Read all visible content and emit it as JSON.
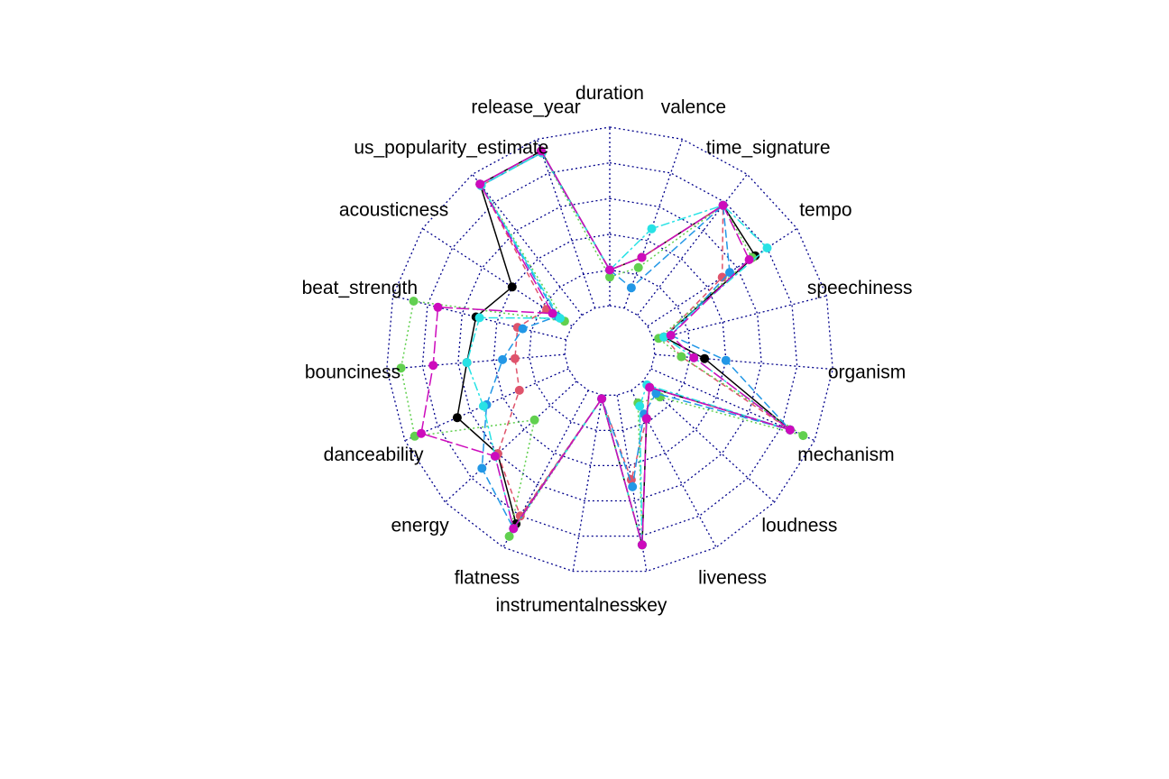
{
  "chart_data": {
    "type": "radar",
    "title": "",
    "axes": [
      "duration",
      "valence",
      "time_signature",
      "tempo",
      "speechiness",
      "organism",
      "mechanism",
      "loudness",
      "liveness",
      "key",
      "instrumentalness",
      "flatness",
      "energy",
      "danceability",
      "bounciness",
      "beat_strength",
      "acousticness",
      "us_popularity_estimate",
      "release_year"
    ],
    "range": [
      0,
      1
    ],
    "grid_levels": 5,
    "series": [
      {
        "color": "#000000",
        "dash": "",
        "values": [
          0.2,
          0.3,
          0.78,
          0.72,
          0.06,
          0.28,
          0.85,
          0.05,
          0.18,
          0.85,
          0.02,
          0.85,
          0.6,
          0.68,
          0.55,
          0.52,
          0.4,
          0.93,
          0.93
        ]
      },
      {
        "color": "#df536b",
        "dash": "6 4",
        "values": [
          0.2,
          0.3,
          0.78,
          0.5,
          0.06,
          0.15,
          0.85,
          0.05,
          0.18,
          0.48,
          0.02,
          0.8,
          0.6,
          0.3,
          0.28,
          0.28,
          0.17,
          0.92,
          0.92
        ]
      },
      {
        "color": "#61d04f",
        "dash": "2 3",
        "values": [
          0.16,
          0.24,
          0.78,
          0.7,
          0.03,
          0.15,
          0.93,
          0.13,
          0.08,
          0.85,
          0.02,
          0.93,
          0.32,
          0.94,
          0.92,
          0.88,
          0.05,
          0.92,
          0.92
        ]
      },
      {
        "color": "#2297e6",
        "dash": "9 4",
        "values": [
          0.2,
          0.12,
          0.78,
          0.55,
          0.1,
          0.4,
          0.85,
          0.1,
          0.15,
          0.52,
          0.02,
          0.88,
          0.72,
          0.5,
          0.35,
          0.25,
          0.1,
          0.92,
          0.92
        ]
      },
      {
        "color": "#28e2e5",
        "dash": "10 3 3 3",
        "values": [
          0.2,
          0.47,
          0.78,
          0.8,
          0.06,
          0.22,
          0.85,
          0.03,
          0.1,
          0.85,
          0.02,
          0.88,
          0.62,
          0.52,
          0.55,
          0.5,
          0.08,
          0.92,
          0.92
        ]
      },
      {
        "color": "#cd0bbc",
        "dash": "14 4",
        "values": [
          0.2,
          0.3,
          0.78,
          0.68,
          0.1,
          0.22,
          0.85,
          0.05,
          0.18,
          0.85,
          0.02,
          0.88,
          0.62,
          0.9,
          0.74,
          0.74,
          0.13,
          0.93,
          0.93
        ]
      }
    ]
  }
}
